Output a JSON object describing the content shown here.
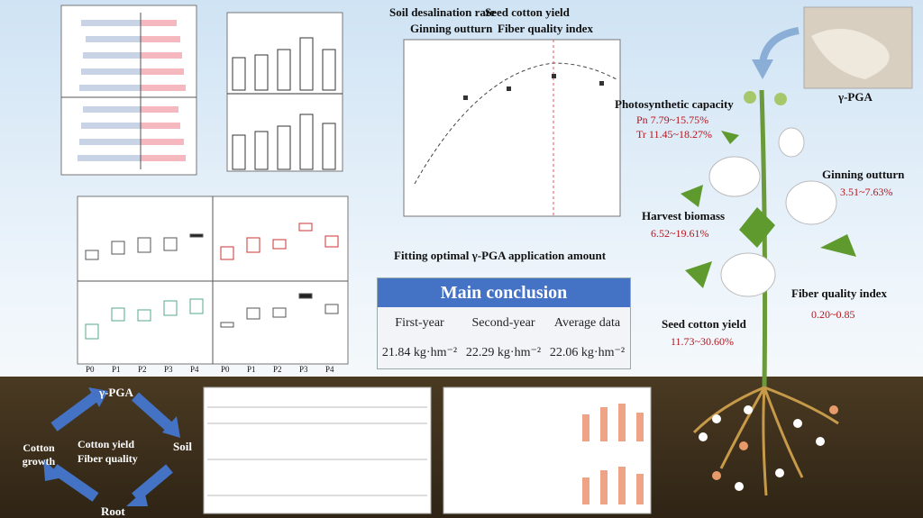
{
  "top_chart": {
    "headers": [
      "Soil desalination rate",
      "Seed cotton yield",
      "Ginning outturn",
      "Fiber quality index"
    ],
    "caption": "Fitting optimal γ-PGA application amount"
  },
  "conclusion": {
    "title": "Main conclusion",
    "columns": [
      "First-year",
      "Second-year",
      "Average data"
    ],
    "values": [
      "21.84 kg·hm⁻²",
      "22.29 kg·hm⁻²",
      "22.06 kg·hm⁻²"
    ]
  },
  "photo_label": "γ-PGA",
  "plant": {
    "photosynthesis": {
      "label": "Photosynthetic capacity",
      "lines": [
        "Pn 7.79~15.75%",
        "Tr 11.45~18.27%"
      ]
    },
    "ginning": {
      "label": "Ginning outturn",
      "value": "3.51~7.63%"
    },
    "biomass": {
      "label": "Harvest biomass",
      "value": "6.52~19.61%"
    },
    "fiber": {
      "label": "Fiber quality index",
      "value": "0.20~0.85"
    },
    "yield": {
      "label": "Seed cotton yield",
      "value": "11.73~30.60%"
    }
  },
  "cycle": {
    "top": "γ-PGA",
    "right": "Soil",
    "bottom": "Root",
    "left": "Cotton growth",
    "center": [
      "Cotton yield",
      "Fiber quality"
    ]
  },
  "treatments": [
    "P0",
    "P1",
    "P2",
    "P3",
    "P4"
  ]
}
